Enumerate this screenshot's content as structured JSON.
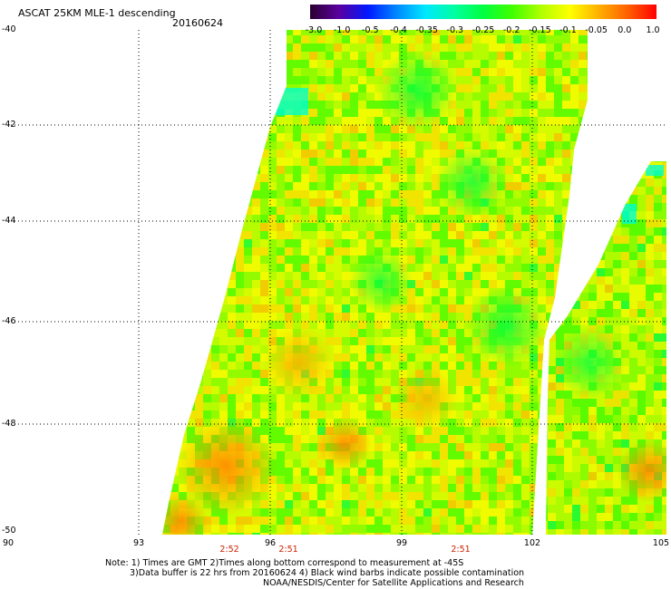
{
  "header": {
    "title": "ASCAT 25KM MLE-1 descending",
    "date": "20160624"
  },
  "colorbar": {
    "labels": [
      "-3.0",
      "-1.0",
      "-0.5",
      "-0.4",
      "-0.35",
      "-0.3",
      "-0.25",
      "-0.2",
      "-0.15",
      "-0.1",
      "-0.05",
      "0.0",
      "1.0"
    ],
    "colors": [
      "#2a0030",
      "#5a00a0",
      "#0018ff",
      "#0088ff",
      "#00e8ff",
      "#00ffa0",
      "#00ff40",
      "#40ff00",
      "#b0ff00",
      "#ffff00",
      "#ffb000",
      "#ff6000",
      "#ff0000"
    ]
  },
  "axes": {
    "lat_labels": [
      "-40",
      "-42",
      "-44",
      "-46",
      "-48",
      "-50"
    ],
    "lon_labels": [
      "90",
      "93",
      "96",
      "99",
      "102",
      "105"
    ],
    "time_labels": [
      "2:52",
      "2:51",
      "2:51"
    ]
  },
  "notes": {
    "line1": "Note: 1) Times are GMT 2)Times along bottom correspond to measurement at -45S",
    "line2": "3)Data buffer is 22 hrs from 20160624 4) Black wind barbs indicate possible contamination",
    "line3": "NOAA/NESDIS/Center for Satellite Applications and Research"
  }
}
